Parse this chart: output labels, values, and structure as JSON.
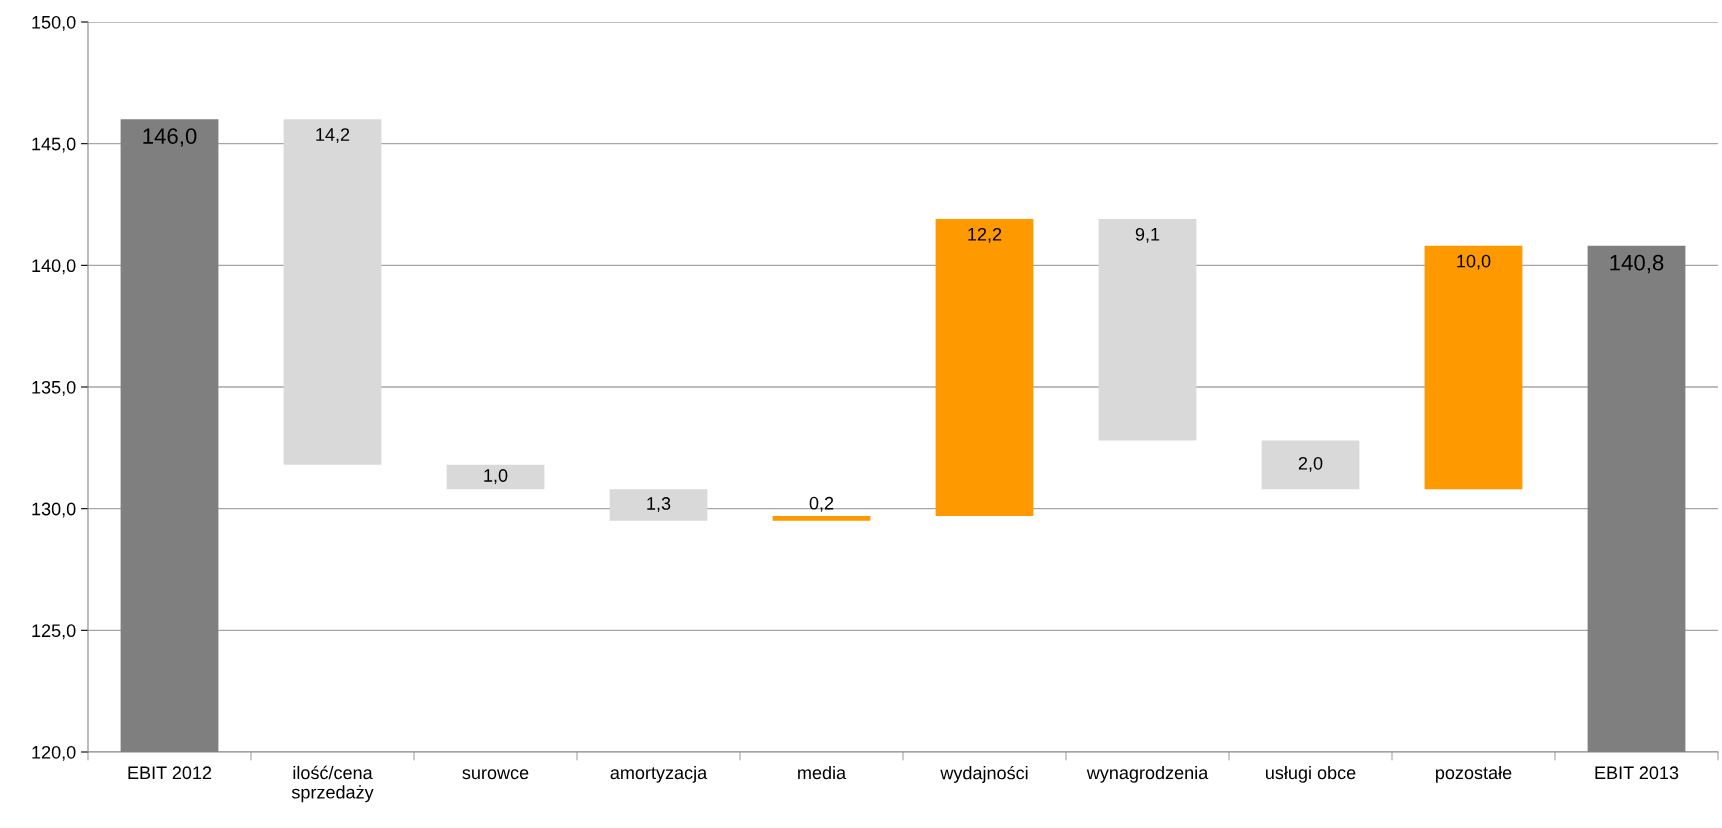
{
  "chart_data": {
    "type": "bar",
    "categories": [
      "EBIT 2012",
      "ilość/cena\nsprzedaży",
      "surowce",
      "amortyzacja",
      "media",
      "wydajności",
      "wynagrodzenia",
      "usługi obce",
      "pozostałe",
      "EBIT 2013"
    ],
    "values": [
      146.0,
      -14.2,
      -1.0,
      -1.3,
      0.2,
      12.2,
      -9.1,
      -2.0,
      10.0,
      140.8
    ],
    "base": [
      null,
      146.0,
      131.8,
      130.8,
      129.5,
      129.7,
      141.9,
      132.8,
      130.8,
      null
    ],
    "colors": [
      "#7f7f7f",
      "#d9d9d9",
      "#d9d9d9",
      "#d9d9d9",
      "#ff9900",
      "#ff9900",
      "#d9d9d9",
      "#d9d9d9",
      "#ff9900",
      "#7f7f7f"
    ],
    "value_labels": [
      "146,0",
      "14,2",
      "1,0",
      "1,3",
      "0,2",
      "12,2",
      "9,1",
      "2,0",
      "10,0",
      "140,8"
    ],
    "ylim": [
      120,
      150
    ],
    "yticks": [
      {
        "value": 120,
        "label": "120,0"
      },
      {
        "value": 125,
        "label": "125,0"
      },
      {
        "value": 130,
        "label": "130,0"
      },
      {
        "value": 135,
        "label": "135,0"
      },
      {
        "value": 140,
        "label": "140,0"
      },
      {
        "value": 145,
        "label": "145,0"
      },
      {
        "value": 150,
        "label": "150,0"
      }
    ],
    "grid": "y",
    "legend": false
  }
}
